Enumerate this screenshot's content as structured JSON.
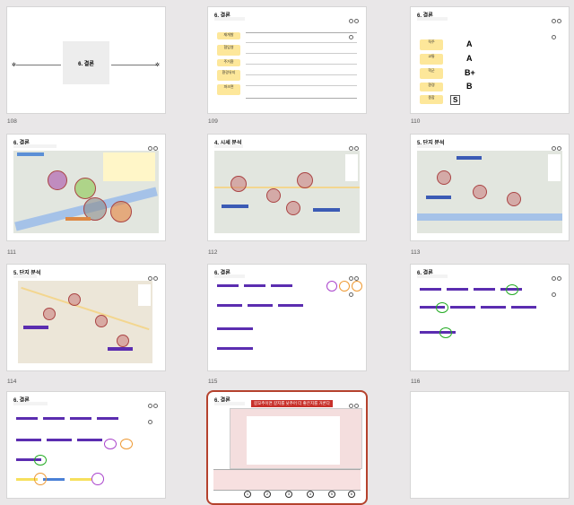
{
  "slides": [
    {
      "number": "108",
      "title": "6. 결론"
    },
    {
      "number": "109",
      "title": "6. 결론"
    },
    {
      "number": "110",
      "title": "6. 결론"
    },
    {
      "number": "111",
      "title": "6. 결론"
    },
    {
      "number": "112",
      "title": "4. 시세 분석"
    },
    {
      "number": "113",
      "title": "5. 단지 분석"
    },
    {
      "number": "114",
      "title": "5. 단지 분석"
    },
    {
      "number": "115",
      "title": "6. 결론"
    },
    {
      "number": "116",
      "title": "6. 결론"
    },
    {
      "number": "",
      "title": "6. 결론"
    },
    {
      "number": "",
      "title": "6. 결론"
    },
    {
      "number": "",
      "title": ""
    }
  ],
  "slide109": {
    "labels": [
      "재개발",
      "협입영",
      "주거환",
      "환경유지",
      "파크면"
    ]
  },
  "slide110": {
    "grades": [
      "A",
      "A",
      "B+",
      "B",
      "S"
    ],
    "labels": [
      "직주",
      "교통",
      "학군",
      "환경",
      "종합"
    ]
  },
  "slide118": {
    "headline": "갈꼬추이면 갈지를 낮추어 더 좋은지를 거론다",
    "markers": [
      "1",
      "2",
      "3",
      "4",
      "5",
      "6"
    ]
  },
  "colors": {
    "accent": "#b5422d",
    "yellow": "#fde79a",
    "purple": "#5b2db0"
  }
}
